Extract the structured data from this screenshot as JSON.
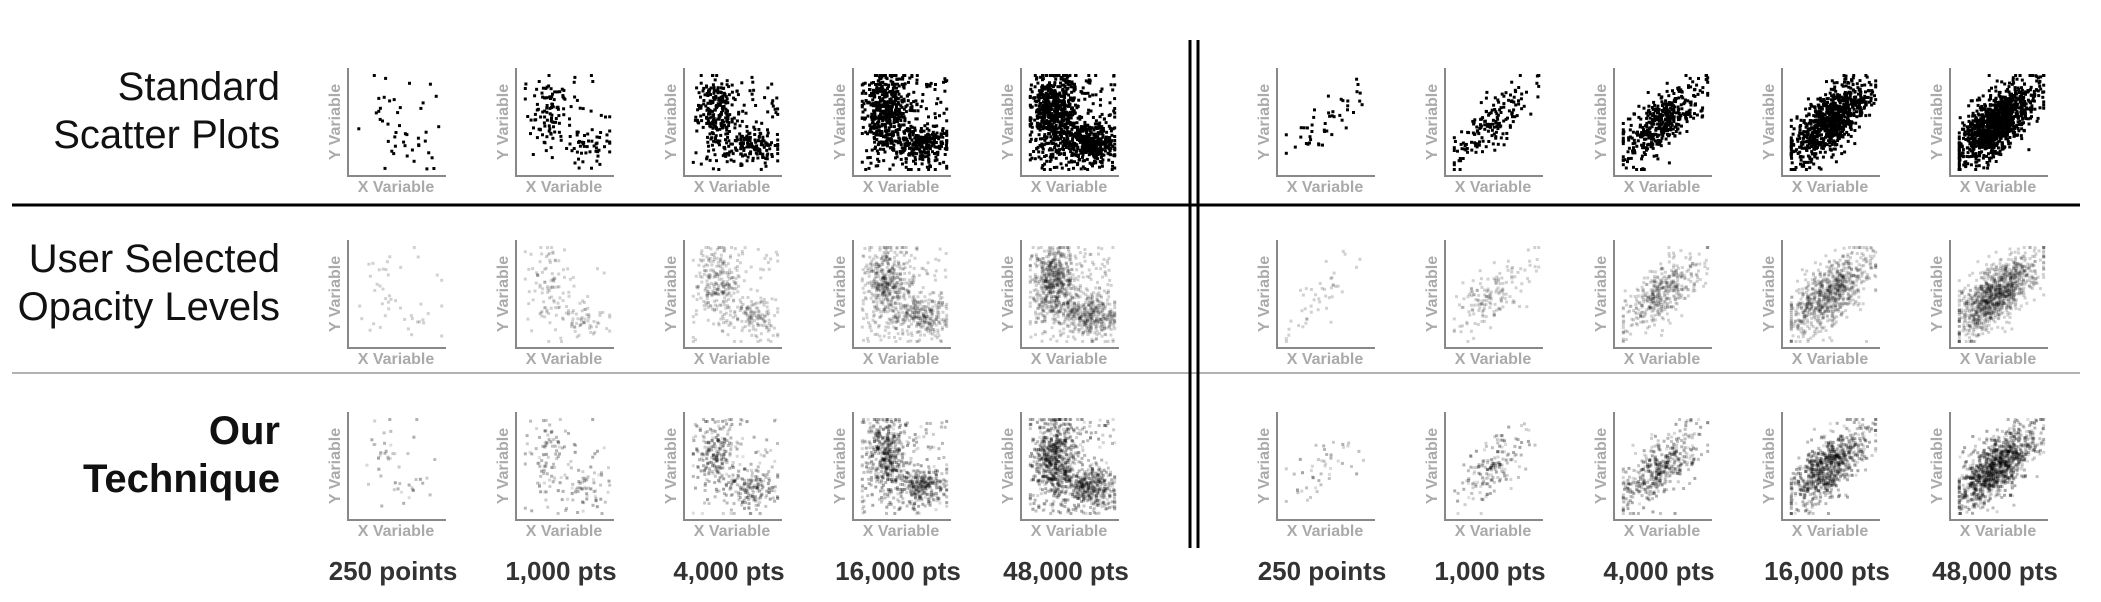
{
  "rows": [
    {
      "label_lines": [
        "Standard",
        "Scatter Plots"
      ]
    },
    {
      "label_lines": [
        "User Selected",
        "Opacity Levels"
      ]
    },
    {
      "label_lines": [
        "Our",
        "Technique"
      ]
    }
  ],
  "column_labels": {
    "left": [
      "250 points",
      "1,000 pts",
      "4,000 pts",
      "16,000 pts",
      "48,000 pts"
    ],
    "right": [
      "250 points",
      "1,000 pts",
      "4,000 pts",
      "16,000 pts",
      "48,000 pts"
    ]
  },
  "axis_labels": {
    "x": "X Variable",
    "y": "Y Variable"
  }
}
